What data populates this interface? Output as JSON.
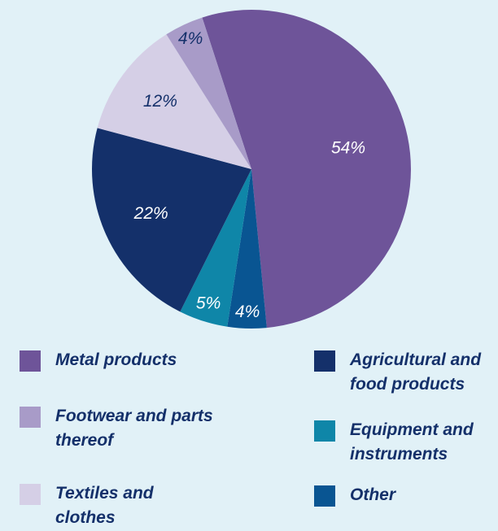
{
  "chart_data": {
    "type": "pie",
    "title": "",
    "slices": [
      {
        "name": "Metal products",
        "value": 54,
        "label": "54%",
        "color": "#6e5499"
      },
      {
        "name": "Other",
        "value": 4,
        "label": "4%",
        "color": "#095592"
      },
      {
        "name": "Equipment and instruments",
        "value": 5,
        "label": "5%",
        "color": "#0f86a8"
      },
      {
        "name": "Agricultural and food products",
        "value": 22,
        "label": "22%",
        "color": "#14306a"
      },
      {
        "name": "Textiles and clothes",
        "value": 12,
        "label": "12%",
        "color": "#d5cfe6"
      },
      {
        "name": "Footwear and parts thereof",
        "value": 4,
        "label": "4%",
        "color": "#a89bc8"
      }
    ],
    "label_colors": {
      "light": "#ffffff",
      "dark": "#14306a"
    },
    "legend_placement": "bottom"
  },
  "legend": {
    "items": [
      {
        "label": "Metal products",
        "color": "#6e5499"
      },
      {
        "label": "Footwear and parts thereof",
        "color": "#a89bc8"
      },
      {
        "label": "Textiles and clothes",
        "color": "#d5cfe6"
      },
      {
        "label": "Agricultural and food products",
        "color": "#14306a"
      },
      {
        "label": "Equipment and instruments",
        "color": "#0f86a8"
      },
      {
        "label": "Other",
        "color": "#095592"
      }
    ]
  }
}
